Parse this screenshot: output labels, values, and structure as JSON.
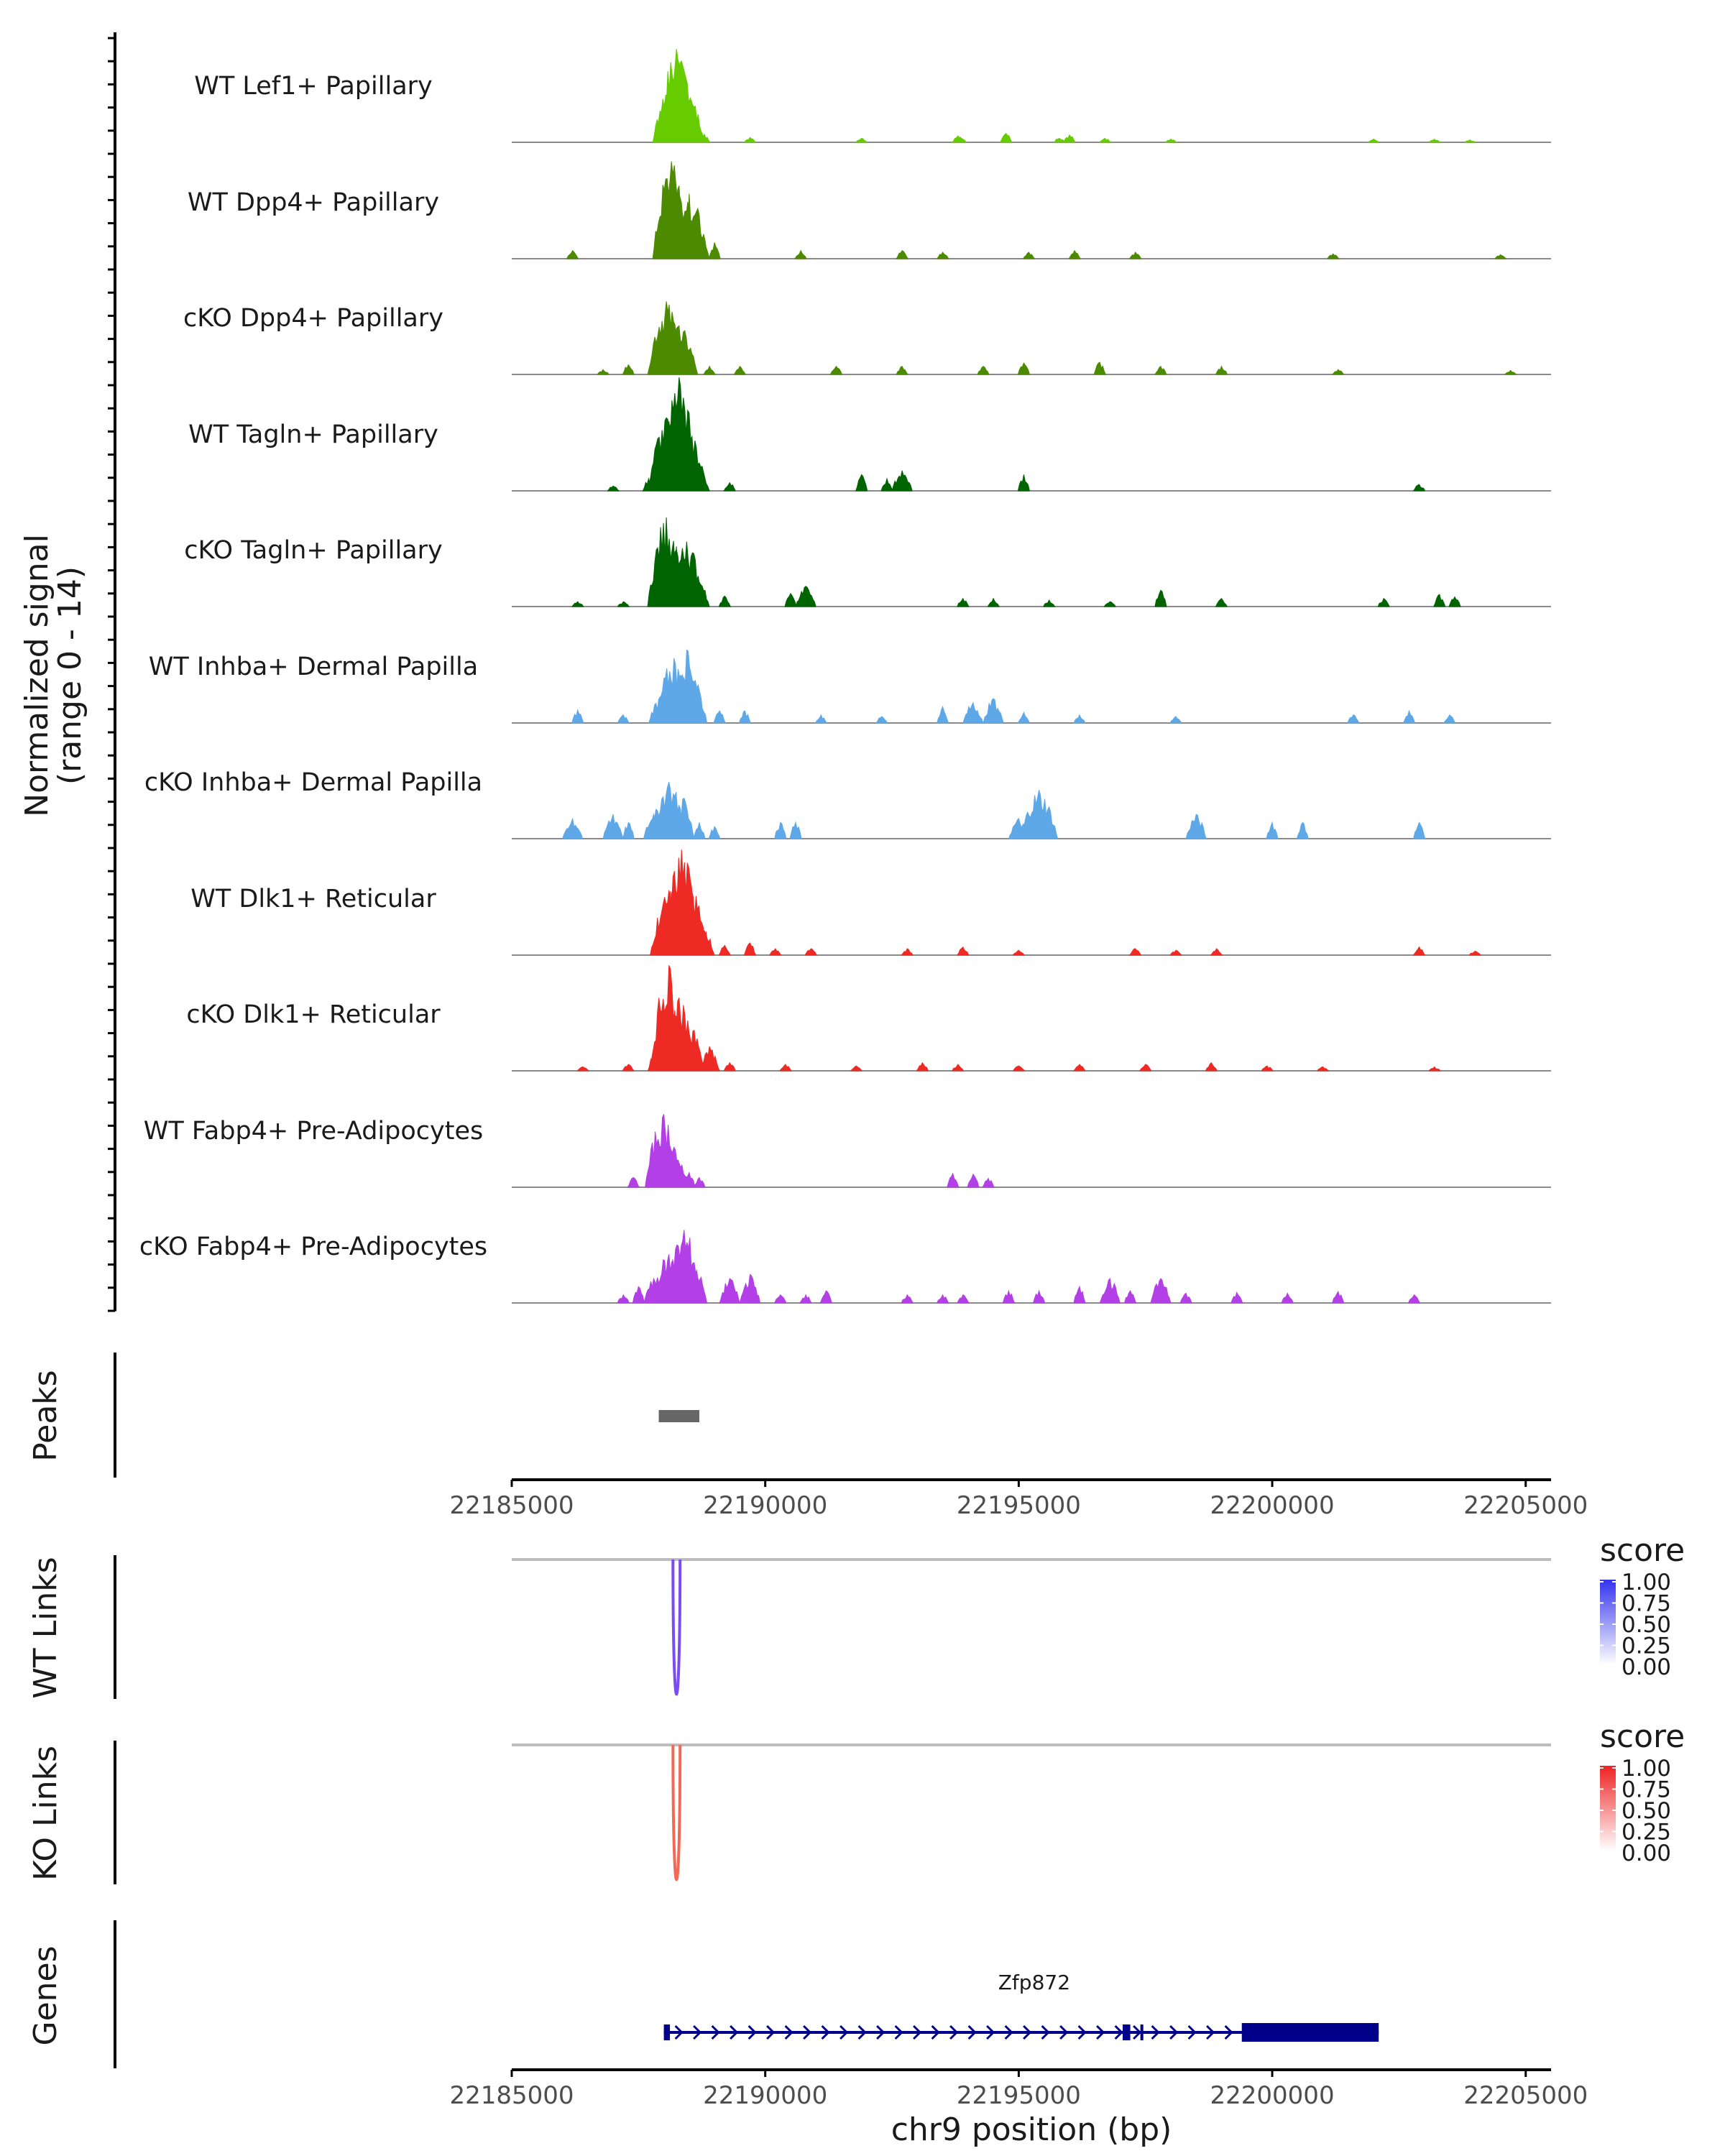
{
  "chart_data": {
    "type": "area",
    "title": "",
    "xlabel": "chr9 position (bp)",
    "ylabel": "Normalized signal",
    "ylabel_range": "(range 0 - 14)",
    "xlim": [
      22185000,
      22205500
    ],
    "x_ticks": [
      22185000,
      22190000,
      22195000,
      22200000,
      22205000
    ],
    "x_tick_labels": [
      "22185000",
      "22190000",
      "22195000",
      "22200000",
      "22205000"
    ],
    "ylim": [
      0,
      14
    ],
    "grid": false,
    "tracks": [
      {
        "name": "WT Lef1+ Papillary",
        "color": "#66CC00",
        "peaks": [
          [
            22188000,
            1
          ],
          [
            22188150,
            8
          ],
          [
            22188250,
            11.5
          ],
          [
            22188350,
            10
          ],
          [
            22188450,
            6
          ],
          [
            22188600,
            2
          ],
          [
            22188800,
            1
          ],
          [
            22189700,
            0.6
          ],
          [
            22191900,
            0.5
          ],
          [
            22193800,
            0.8
          ],
          [
            22193850,
            0.6
          ],
          [
            22194750,
            1.1
          ],
          [
            22195800,
            0.5
          ],
          [
            22196000,
            0.9
          ],
          [
            22196700,
            0.5
          ],
          [
            22198000,
            0.4
          ],
          [
            22202000,
            0.4
          ],
          [
            22203200,
            0.4
          ],
          [
            22203900,
            0.3
          ]
        ]
      },
      {
        "name": "WT Dpp4+ Papillary",
        "color": "#4C8A00",
        "peaks": [
          [
            22186200,
            1
          ],
          [
            22187900,
            2
          ],
          [
            22188150,
            12
          ],
          [
            22188300,
            9
          ],
          [
            22188500,
            8
          ],
          [
            22188700,
            3
          ],
          [
            22189000,
            2
          ],
          [
            22190700,
            1
          ],
          [
            22192700,
            1
          ],
          [
            22193500,
            0.8
          ],
          [
            22195200,
            0.8
          ],
          [
            22196100,
            1
          ],
          [
            22197300,
            0.8
          ],
          [
            22201200,
            0.6
          ],
          [
            22204500,
            0.5
          ]
        ]
      },
      {
        "name": "cKO Dpp4+ Papillary",
        "color": "#4C8A00",
        "peaks": [
          [
            22186800,
            0.6
          ],
          [
            22187300,
            1.2
          ],
          [
            22187800,
            2
          ],
          [
            22188050,
            9
          ],
          [
            22188300,
            6
          ],
          [
            22188500,
            2
          ],
          [
            22188900,
            1
          ],
          [
            22189500,
            1
          ],
          [
            22191400,
            1
          ],
          [
            22192700,
            1
          ],
          [
            22194300,
            1
          ],
          [
            22195100,
            1.4
          ],
          [
            22196600,
            1.5
          ],
          [
            22197800,
            1
          ],
          [
            22199000,
            1
          ],
          [
            22201300,
            0.6
          ],
          [
            22204700,
            0.5
          ]
        ]
      },
      {
        "name": "WT Tagln+ Papillary",
        "color": "#006400",
        "peaks": [
          [
            22187000,
            0.6
          ],
          [
            22187700,
            1.5
          ],
          [
            22188050,
            9
          ],
          [
            22188300,
            14
          ],
          [
            22188500,
            7
          ],
          [
            22188700,
            3
          ],
          [
            22189300,
            1
          ],
          [
            22191900,
            2
          ],
          [
            22192400,
            1.5
          ],
          [
            22192700,
            2.5
          ],
          [
            22195100,
            2
          ],
          [
            22202900,
            0.8
          ]
        ]
      },
      {
        "name": "cKO Tagln+ Papillary",
        "color": "#006400",
        "peaks": [
          [
            22186300,
            0.6
          ],
          [
            22187200,
            0.6
          ],
          [
            22187800,
            1.5
          ],
          [
            22188050,
            11
          ],
          [
            22188250,
            7
          ],
          [
            22188450,
            8
          ],
          [
            22188700,
            3
          ],
          [
            22189200,
            1.3
          ],
          [
            22190500,
            1.6
          ],
          [
            22190800,
            2.5
          ],
          [
            22193900,
            1
          ],
          [
            22194500,
            1
          ],
          [
            22195600,
            0.8
          ],
          [
            22196800,
            0.6
          ],
          [
            22197800,
            2
          ],
          [
            22199000,
            1
          ],
          [
            22202200,
            1
          ],
          [
            22203300,
            1.5
          ],
          [
            22203600,
            1.2
          ]
        ]
      },
      {
        "name": "WT Inhba+ Dermal Papilla",
        "color": "#5FA8E8",
        "peaks": [
          [
            22186300,
            1.6
          ],
          [
            22187200,
            1
          ],
          [
            22187900,
            3
          ],
          [
            22188200,
            8
          ],
          [
            22188450,
            9
          ],
          [
            22188650,
            4
          ],
          [
            22189100,
            1.5
          ],
          [
            22189600,
            1.5
          ],
          [
            22191100,
            1
          ],
          [
            22192300,
            0.8
          ],
          [
            22193500,
            2
          ],
          [
            22194100,
            2.5
          ],
          [
            22194500,
            3
          ],
          [
            22195100,
            1.3
          ],
          [
            22196200,
            1
          ],
          [
            22198100,
            0.8
          ],
          [
            22201600,
            1
          ],
          [
            22202700,
            1.5
          ],
          [
            22203500,
            1
          ]
        ]
      },
      {
        "name": "cKO Inhba+ Dermal Papilla",
        "color": "#5FA8E8",
        "peaks": [
          [
            22186200,
            2.5
          ],
          [
            22187000,
            3
          ],
          [
            22187300,
            2
          ],
          [
            22187800,
            3
          ],
          [
            22188100,
            7
          ],
          [
            22188400,
            5
          ],
          [
            22188700,
            2
          ],
          [
            22189000,
            1.5
          ],
          [
            22190300,
            2
          ],
          [
            22190600,
            2
          ],
          [
            22195000,
            2.5
          ],
          [
            22195400,
            6
          ],
          [
            22198500,
            3
          ],
          [
            22200000,
            2
          ],
          [
            22200600,
            2
          ],
          [
            22202900,
            2
          ]
        ]
      },
      {
        "name": "WT Dlk1+ Reticular",
        "color": "#EE2A24",
        "peaks": [
          [
            22188100,
            8
          ],
          [
            22188350,
            13
          ],
          [
            22188550,
            8
          ],
          [
            22188800,
            3
          ],
          [
            22189200,
            1.2
          ],
          [
            22189700,
            1.5
          ],
          [
            22190200,
            0.8
          ],
          [
            22190900,
            0.8
          ],
          [
            22192800,
            0.8
          ],
          [
            22193900,
            1
          ],
          [
            22195000,
            0.6
          ],
          [
            22197300,
            0.8
          ],
          [
            22198100,
            0.6
          ],
          [
            22198900,
            0.8
          ],
          [
            22202900,
            1
          ],
          [
            22204000,
            0.5
          ]
        ]
      },
      {
        "name": "cKO Dlk1+ Reticular",
        "color": "#EE2A24",
        "peaks": [
          [
            22186400,
            0.5
          ],
          [
            22187300,
            0.8
          ],
          [
            22187800,
            2
          ],
          [
            22188100,
            13
          ],
          [
            22188300,
            9
          ],
          [
            22188600,
            5
          ],
          [
            22188900,
            3
          ],
          [
            22189300,
            1
          ],
          [
            22190400,
            0.8
          ],
          [
            22191800,
            0.6
          ],
          [
            22193100,
            1
          ],
          [
            22193800,
            0.8
          ],
          [
            22195000,
            0.6
          ],
          [
            22196200,
            0.8
          ],
          [
            22197500,
            0.8
          ],
          [
            22198800,
            1
          ],
          [
            22199900,
            0.6
          ],
          [
            22201000,
            0.5
          ],
          [
            22203200,
            0.5
          ]
        ]
      },
      {
        "name": "WT Fabp4+ Pre-Adipocytes",
        "color": "#B33FE6",
        "peaks": [
          [
            22187400,
            1.2
          ],
          [
            22188000,
            9
          ],
          [
            22188300,
            3
          ],
          [
            22188500,
            1.8
          ],
          [
            22188700,
            1.2
          ],
          [
            22193700,
            1.7
          ],
          [
            22194100,
            1.6
          ],
          [
            22194400,
            1.1
          ]
        ]
      },
      {
        "name": "cKO Fabp4+ Pre-Adipocytes",
        "color": "#B33FE6",
        "peaks": [
          [
            22187200,
            1
          ],
          [
            22187500,
            2
          ],
          [
            22187800,
            3
          ],
          [
            22188100,
            6
          ],
          [
            22188400,
            9
          ],
          [
            22188650,
            4
          ],
          [
            22189300,
            3
          ],
          [
            22189700,
            3.5
          ],
          [
            22190300,
            1
          ],
          [
            22190800,
            1
          ],
          [
            22191200,
            1.5
          ],
          [
            22192800,
            1
          ],
          [
            22193500,
            1
          ],
          [
            22193900,
            1
          ],
          [
            22194800,
            1.5
          ],
          [
            22195400,
            1.5
          ],
          [
            22196200,
            2
          ],
          [
            22196800,
            3
          ],
          [
            22197200,
            1.5
          ],
          [
            22197800,
            3
          ],
          [
            22198300,
            1.2
          ],
          [
            22199300,
            1.3
          ],
          [
            22200300,
            1.2
          ],
          [
            22201300,
            1.4
          ],
          [
            22202800,
            1
          ]
        ]
      }
    ],
    "peaks_track": {
      "label": "Peaks",
      "regions": [
        [
          22187900,
          22188700
        ]
      ]
    },
    "links_tracks": [
      {
        "label": "WT Links",
        "legend_title": "score",
        "legend_ticks": [
          "1.00",
          "0.75",
          "0.50",
          "0.25",
          "0.00"
        ],
        "color_low": "#FFFFFF",
        "color_high": "#3333EE",
        "links": [
          [
            22188180,
            22188320,
            0.7
          ]
        ]
      },
      {
        "label": "KO Links",
        "legend_title": "score",
        "legend_ticks": [
          "1.00",
          "0.75",
          "0.50",
          "0.25",
          "0.00"
        ],
        "color_low": "#FFFFFF",
        "color_high": "#EE2222",
        "links": [
          [
            22188180,
            22188320,
            0.6
          ]
        ]
      }
    ],
    "genes_track": {
      "label": "Genes",
      "genes": [
        {
          "name": "Zfp872",
          "start": 22188000,
          "end": 22202100,
          "exons": [
            [
              22188000,
              22188120
            ],
            [
              22197050,
              22197200
            ],
            [
              22197400,
              22197450
            ],
            [
              22199400,
              22202100
            ]
          ]
        }
      ]
    }
  }
}
